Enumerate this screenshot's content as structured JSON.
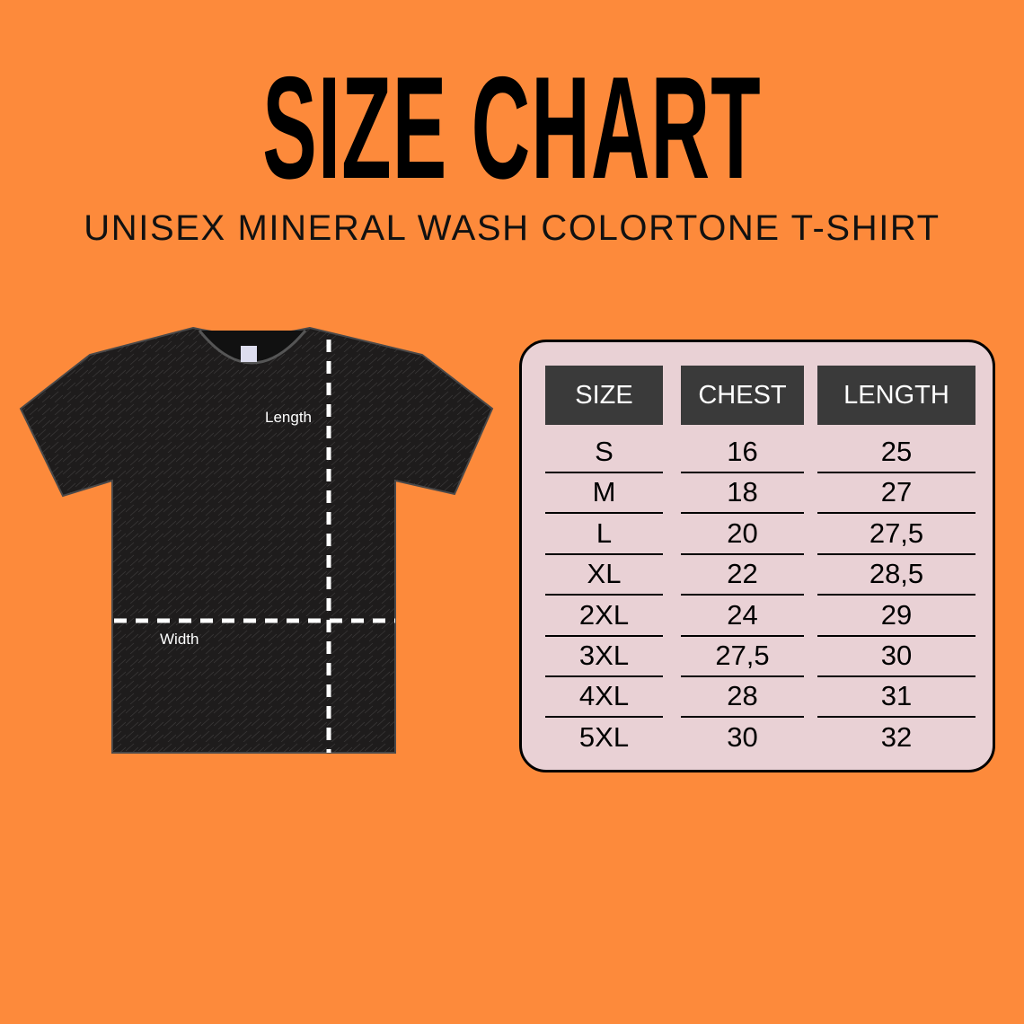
{
  "title": "SIZE CHART",
  "subtitle": "UNISEX MINERAL WASH COLORTONE T-SHIRT",
  "shirt": {
    "length_label": "Length",
    "width_label": "Width",
    "color": "#1e1c1c"
  },
  "colors": {
    "background": "#fd8a3b",
    "table_bg": "#e9d1d5",
    "header_bg": "#3a3a3a"
  },
  "table": {
    "headers": [
      "SIZE",
      "CHEST",
      "LENGTH"
    ],
    "rows": [
      [
        "S",
        "16",
        "25"
      ],
      [
        "M",
        "18",
        "27"
      ],
      [
        "L",
        "20",
        "27,5"
      ],
      [
        "XL",
        "22",
        "28,5"
      ],
      [
        "2XL",
        "24",
        "29"
      ],
      [
        "3XL",
        "27,5",
        "30"
      ],
      [
        "4XL",
        "28",
        "31"
      ],
      [
        "5XL",
        "30",
        "32"
      ]
    ]
  }
}
